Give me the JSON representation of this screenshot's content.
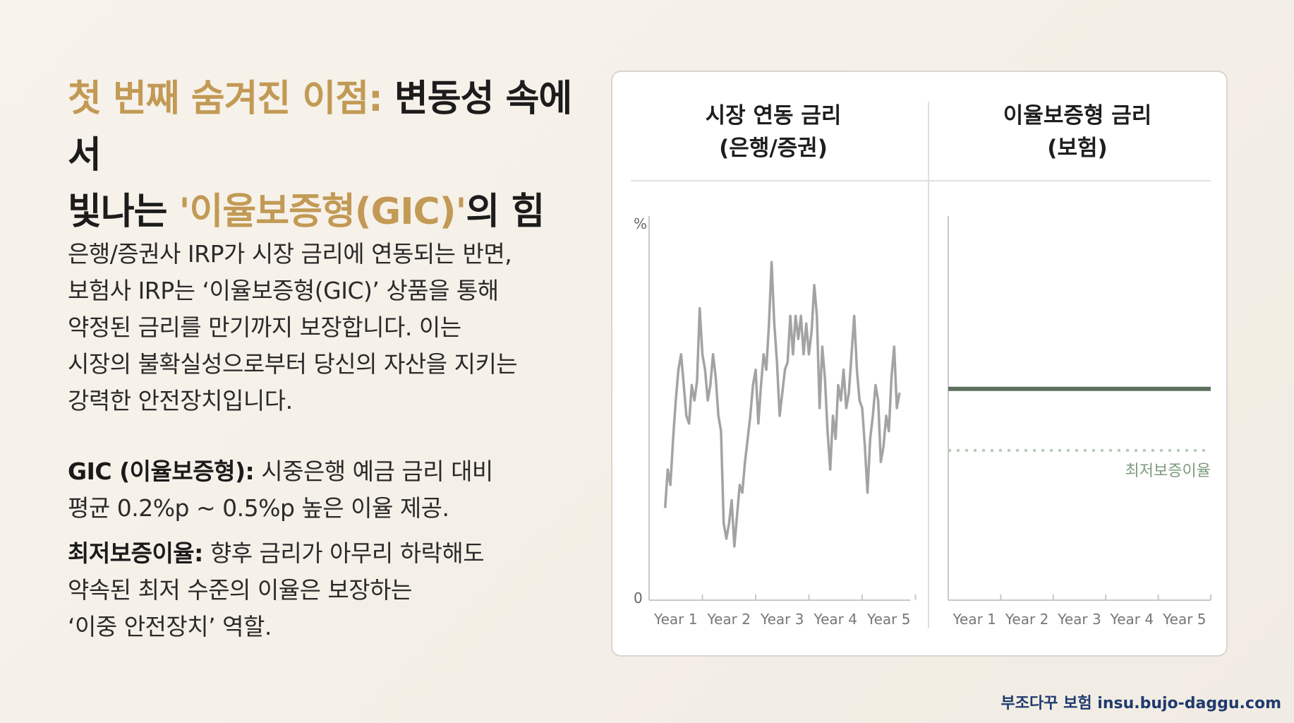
{
  "title": {
    "line1_gold": "첫 번째 숨겨진 이점:",
    "line1_dark": " 변동성 속에서",
    "line2_dark": "빛나는 ",
    "line2_gold": "'이율보증형(GIC)'",
    "line2_end": "의 힘"
  },
  "body": {
    "lines": [
      "은행/증권사 IRP가 시장 금리에 연동되는 반면,",
      "보험사 IRP는 ‘이율보증형(GIC)’ 상품을 통해",
      "약정된 금리를 만기까지 보장합니다. 이는",
      "시장의 불확실성으로부터 당신의 자산을 지키는",
      "강력한 안전장치입니다."
    ]
  },
  "bullets": [
    {
      "label": "GIC (이율보증형):",
      "line1": " 시중은행 예금 금리 대비",
      "line2": "평균 0.2%p ~ 0.5%p 높은 이율 제공."
    },
    {
      "label": "최저보증이율:",
      "line1": " 향후 금리가 아무리 하락해도",
      "line2": "약속된 최저 수준의 이율은 보장하는",
      "line3": "‘이중 안전장치’ 역할."
    }
  ],
  "footer": "부조다꾸 보험 insu.bujo-daggu.com",
  "colors": {
    "gold": "#c29a55",
    "market_line": "#a3a3a3",
    "guaranteed_line": "#5f6f5f",
    "min_rate_label": "#7d9a7d"
  },
  "chart_data": [
    {
      "type": "line",
      "title_line1": "시장 연동 금리",
      "title_line2": "(은행/증권)",
      "ylabel": "%",
      "y_zero_label": "0",
      "ylim": [
        0,
        100
      ],
      "categories": [
        "Year 1",
        "Year 2",
        "Year 3",
        "Year 4",
        "Year 5"
      ],
      "x_range": [
        0.8,
        5.85
      ],
      "series": [
        {
          "points": [
            [
              0.8,
              24
            ],
            [
              0.85,
              34
            ],
            [
              0.9,
              30
            ],
            [
              0.95,
              42
            ],
            [
              1.0,
              52
            ],
            [
              1.05,
              60
            ],
            [
              1.1,
              64
            ],
            [
              1.15,
              56
            ],
            [
              1.2,
              48
            ],
            [
              1.25,
              46
            ],
            [
              1.3,
              56
            ],
            [
              1.35,
              52
            ],
            [
              1.4,
              57
            ],
            [
              1.45,
              76
            ],
            [
              1.5,
              64
            ],
            [
              1.55,
              60
            ],
            [
              1.6,
              52
            ],
            [
              1.65,
              56
            ],
            [
              1.7,
              64
            ],
            [
              1.75,
              58
            ],
            [
              1.8,
              48
            ],
            [
              1.85,
              44
            ],
            [
              1.9,
              20
            ],
            [
              1.95,
              16
            ],
            [
              2.0,
              20
            ],
            [
              2.05,
              26
            ],
            [
              2.1,
              14
            ],
            [
              2.15,
              22
            ],
            [
              2.2,
              30
            ],
            [
              2.25,
              28
            ],
            [
              2.3,
              36
            ],
            [
              2.35,
              42
            ],
            [
              2.4,
              48
            ],
            [
              2.45,
              56
            ],
            [
              2.5,
              60
            ],
            [
              2.55,
              46
            ],
            [
              2.6,
              56
            ],
            [
              2.65,
              64
            ],
            [
              2.7,
              60
            ],
            [
              2.75,
              72
            ],
            [
              2.8,
              88
            ],
            [
              2.85,
              72
            ],
            [
              2.9,
              62
            ],
            [
              2.95,
              48
            ],
            [
              3.0,
              54
            ],
            [
              3.05,
              60
            ],
            [
              3.1,
              62
            ],
            [
              3.15,
              74
            ],
            [
              3.2,
              64
            ],
            [
              3.25,
              74
            ],
            [
              3.3,
              68
            ],
            [
              3.35,
              74
            ],
            [
              3.4,
              64
            ],
            [
              3.45,
              72
            ],
            [
              3.5,
              64
            ],
            [
              3.55,
              70
            ],
            [
              3.6,
              82
            ],
            [
              3.65,
              74
            ],
            [
              3.7,
              50
            ],
            [
              3.75,
              66
            ],
            [
              3.8,
              58
            ],
            [
              3.85,
              44
            ],
            [
              3.9,
              34
            ],
            [
              3.95,
              48
            ],
            [
              4.0,
              42
            ],
            [
              4.05,
              56
            ],
            [
              4.1,
              52
            ],
            [
              4.15,
              60
            ],
            [
              4.2,
              50
            ],
            [
              4.25,
              54
            ],
            [
              4.3,
              64
            ],
            [
              4.35,
              74
            ],
            [
              4.4,
              60
            ],
            [
              4.45,
              52
            ],
            [
              4.5,
              50
            ],
            [
              4.55,
              40
            ],
            [
              4.6,
              28
            ],
            [
              4.65,
              42
            ],
            [
              4.7,
              48
            ],
            [
              4.75,
              56
            ],
            [
              4.8,
              52
            ],
            [
              4.85,
              36
            ],
            [
              4.9,
              40
            ],
            [
              4.95,
              48
            ],
            [
              5.0,
              44
            ],
            [
              5.05,
              58
            ],
            [
              5.1,
              66
            ],
            [
              5.15,
              50
            ],
            [
              5.2,
              54
            ]
          ]
        }
      ]
    },
    {
      "type": "line",
      "title_line1": "이율보증형 금리",
      "title_line2": "(보험)",
      "ylim": [
        0,
        100
      ],
      "categories": [
        "Year 1",
        "Year 2",
        "Year 3",
        "Year 4",
        "Year 5"
      ],
      "series": [
        {
          "points": [
            [
              0.85,
              55
            ],
            [
              5.85,
              55
            ]
          ]
        }
      ],
      "reference_line": {
        "label": "최저보증이율",
        "value": 39,
        "style": "dotted"
      }
    }
  ]
}
